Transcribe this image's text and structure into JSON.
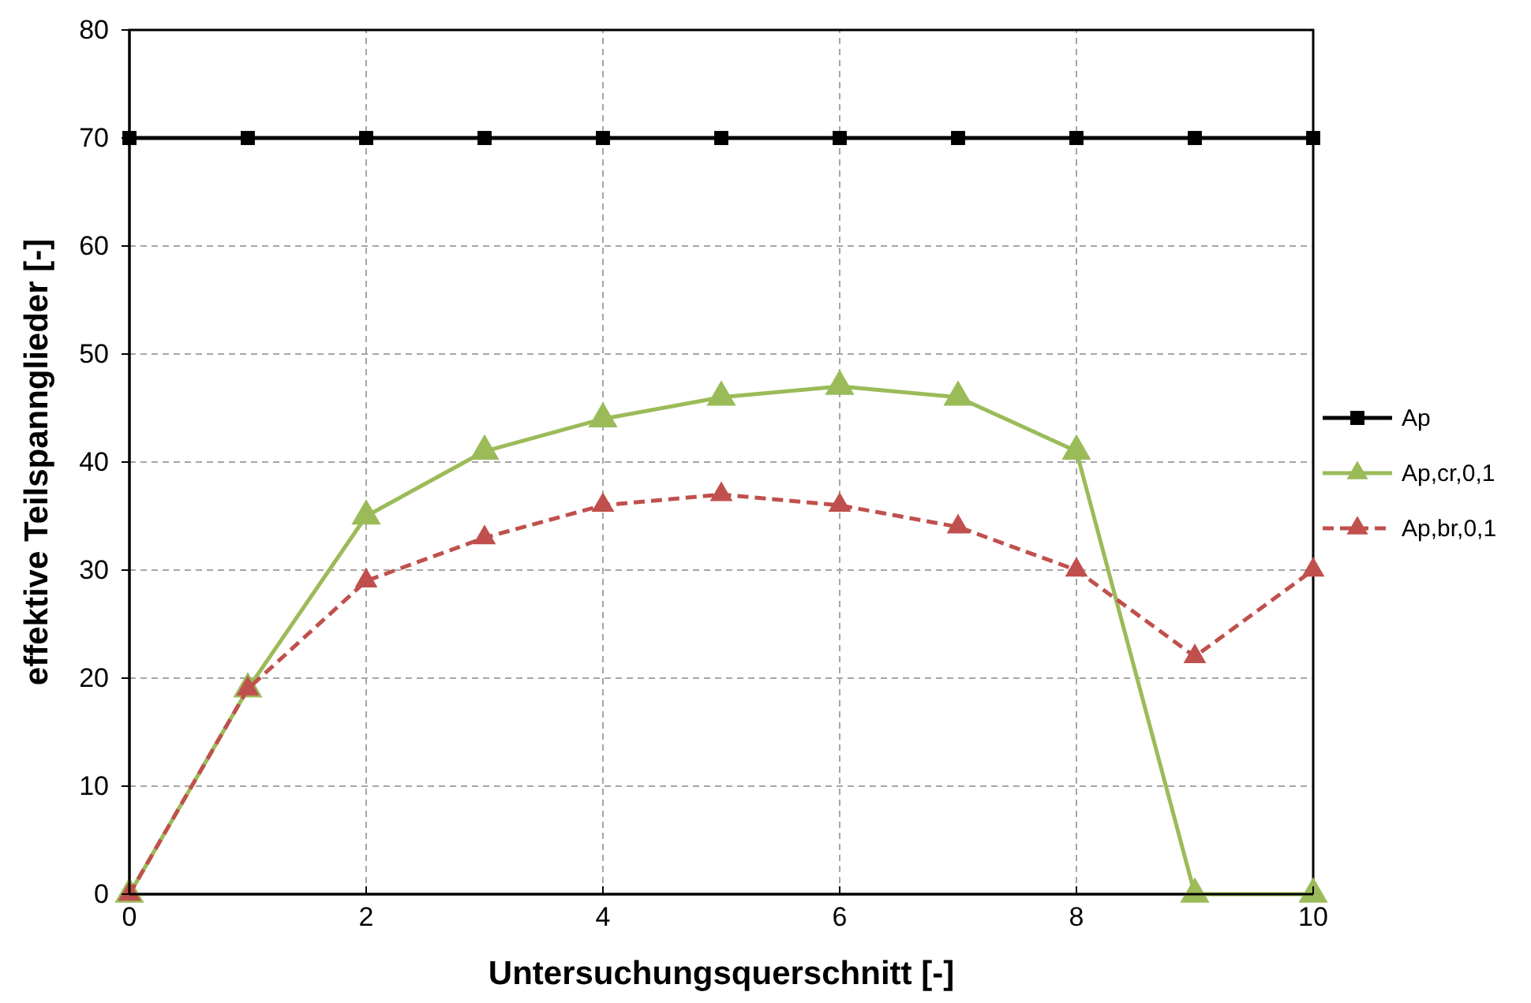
{
  "chart_data": {
    "type": "line",
    "xlabel": "Untersuchungsquerschnitt  [-]",
    "ylabel": "effektive Teilspannglieder [-]",
    "x": [
      0,
      1,
      2,
      3,
      4,
      5,
      6,
      7,
      8,
      9,
      10
    ],
    "xlim": [
      0,
      10
    ],
    "xticks": [
      0,
      2,
      4,
      6,
      8,
      10
    ],
    "ylim": [
      0,
      80
    ],
    "yticks": [
      0,
      10,
      20,
      30,
      40,
      50,
      60,
      70,
      80
    ],
    "grid": true,
    "legend": "right",
    "series": [
      {
        "name": "Ap",
        "color": "#000000",
        "marker": "square",
        "line_style": "solid",
        "values": [
          70,
          70,
          70,
          70,
          70,
          70,
          70,
          70,
          70,
          70,
          70
        ]
      },
      {
        "name": "Ap,cr,0,1",
        "color": "#9bbb59",
        "marker": "triangle",
        "line_style": "solid",
        "values": [
          0,
          19,
          35,
          41,
          44,
          46,
          47,
          46,
          41,
          0,
          0
        ]
      },
      {
        "name": "Ap,br,0,1",
        "color": "#c0504d",
        "marker": "triangle",
        "line_style": "dashed",
        "values": [
          0,
          19,
          29,
          33,
          36,
          37,
          36,
          34,
          30,
          22,
          30
        ]
      }
    ]
  }
}
